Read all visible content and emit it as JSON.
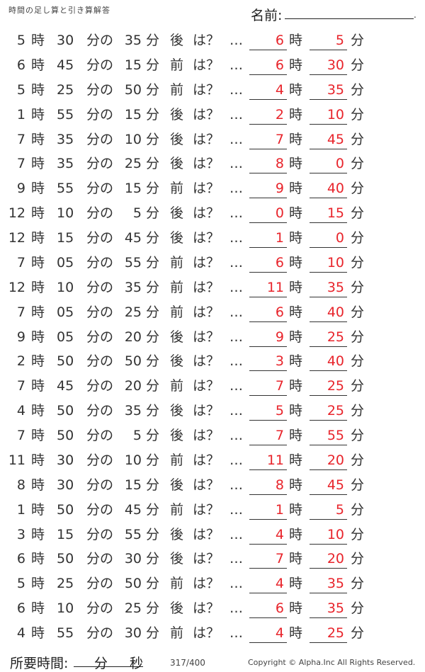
{
  "header": {
    "title": "時間の足し算と引き算解答",
    "name_label": "名前:"
  },
  "labels": {
    "hour": "時",
    "minute": "分",
    "minute_of": "分の",
    "question": "は？",
    "dots": "…",
    "after": "後",
    "before": "前"
  },
  "problems": [
    {
      "h": "5",
      "m": "30",
      "d": "35",
      "dir": "後",
      "ah": "6",
      "am": "5"
    },
    {
      "h": "6",
      "m": "45",
      "d": "15",
      "dir": "前",
      "ah": "6",
      "am": "30"
    },
    {
      "h": "5",
      "m": "25",
      "d": "50",
      "dir": "前",
      "ah": "4",
      "am": "35"
    },
    {
      "h": "1",
      "m": "55",
      "d": "15",
      "dir": "後",
      "ah": "2",
      "am": "10"
    },
    {
      "h": "7",
      "m": "35",
      "d": "10",
      "dir": "後",
      "ah": "7",
      "am": "45"
    },
    {
      "h": "7",
      "m": "35",
      "d": "25",
      "dir": "後",
      "ah": "8",
      "am": "0"
    },
    {
      "h": "9",
      "m": "55",
      "d": "15",
      "dir": "前",
      "ah": "9",
      "am": "40"
    },
    {
      "h": "12",
      "m": "10",
      "d": "5",
      "dir": "後",
      "ah": "0",
      "am": "15"
    },
    {
      "h": "12",
      "m": "15",
      "d": "45",
      "dir": "後",
      "ah": "1",
      "am": "0"
    },
    {
      "h": "7",
      "m": "05",
      "d": "55",
      "dir": "前",
      "ah": "6",
      "am": "10"
    },
    {
      "h": "12",
      "m": "10",
      "d": "35",
      "dir": "前",
      "ah": "11",
      "am": "35"
    },
    {
      "h": "7",
      "m": "05",
      "d": "25",
      "dir": "前",
      "ah": "6",
      "am": "40"
    },
    {
      "h": "9",
      "m": "05",
      "d": "20",
      "dir": "後",
      "ah": "9",
      "am": "25"
    },
    {
      "h": "2",
      "m": "50",
      "d": "50",
      "dir": "後",
      "ah": "3",
      "am": "40"
    },
    {
      "h": "7",
      "m": "45",
      "d": "20",
      "dir": "前",
      "ah": "7",
      "am": "25"
    },
    {
      "h": "4",
      "m": "50",
      "d": "35",
      "dir": "後",
      "ah": "5",
      "am": "25"
    },
    {
      "h": "7",
      "m": "50",
      "d": "5",
      "dir": "後",
      "ah": "7",
      "am": "55"
    },
    {
      "h": "11",
      "m": "30",
      "d": "10",
      "dir": "前",
      "ah": "11",
      "am": "20"
    },
    {
      "h": "8",
      "m": "30",
      "d": "15",
      "dir": "後",
      "ah": "8",
      "am": "45"
    },
    {
      "h": "1",
      "m": "50",
      "d": "45",
      "dir": "前",
      "ah": "1",
      "am": "5"
    },
    {
      "h": "3",
      "m": "15",
      "d": "55",
      "dir": "後",
      "ah": "4",
      "am": "10"
    },
    {
      "h": "6",
      "m": "50",
      "d": "30",
      "dir": "後",
      "ah": "7",
      "am": "20"
    },
    {
      "h": "5",
      "m": "25",
      "d": "50",
      "dir": "前",
      "ah": "4",
      "am": "35"
    },
    {
      "h": "6",
      "m": "10",
      "d": "25",
      "dir": "後",
      "ah": "6",
      "am": "35"
    },
    {
      "h": "4",
      "m": "55",
      "d": "30",
      "dir": "前",
      "ah": "4",
      "am": "25"
    }
  ],
  "footer": {
    "required_time": "所要時間:",
    "minute": "分",
    "second": "秒",
    "page": "317/400",
    "copyright": "Copyright ©  Alpha.Inc All Rights Reserved."
  },
  "colors": {
    "answer": "#e8242b"
  }
}
